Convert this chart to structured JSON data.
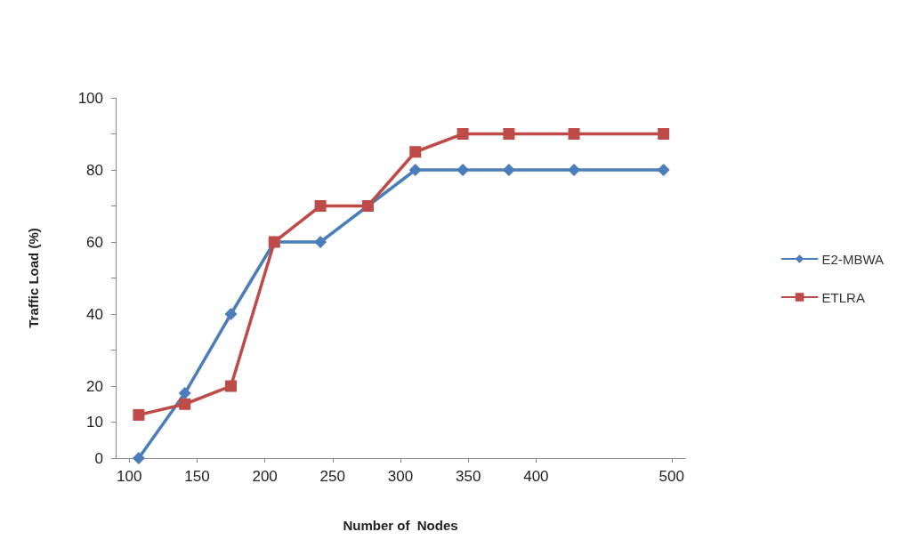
{
  "chart_data": {
    "type": "line",
    "xlabel": "Number of  Nodes",
    "ylabel": "Traffic Load (%)",
    "xlim": [
      90,
      510
    ],
    "xticks": [
      100,
      150,
      200,
      250,
      300,
      350,
      400,
      500
    ],
    "ylim": [
      0,
      100
    ],
    "yticks": [
      0,
      10,
      20,
      {
        "value": 30,
        "label": null
      },
      40,
      {
        "value": 50,
        "label": null
      },
      60,
      {
        "value": 70,
        "label": null
      },
      80,
      {
        "value": 90,
        "label": null
      },
      100
    ],
    "x": [
      107,
      141,
      175,
      207,
      241,
      276,
      311,
      346,
      380,
      428,
      494
    ],
    "series": [
      {
        "name": "E2-MBWA",
        "color": "#4a7ebb",
        "marker": "diamond",
        "values": [
          0,
          18,
          40,
          60,
          60,
          70,
          80,
          80,
          80,
          80,
          80
        ]
      },
      {
        "name": "ETLRA",
        "color": "#be4b48",
        "marker": "square",
        "values": [
          12,
          15,
          20,
          60,
          70,
          70,
          85,
          90,
          90,
          90,
          90
        ]
      }
    ],
    "grid": false,
    "legend": "right",
    "line_style": "solid"
  }
}
